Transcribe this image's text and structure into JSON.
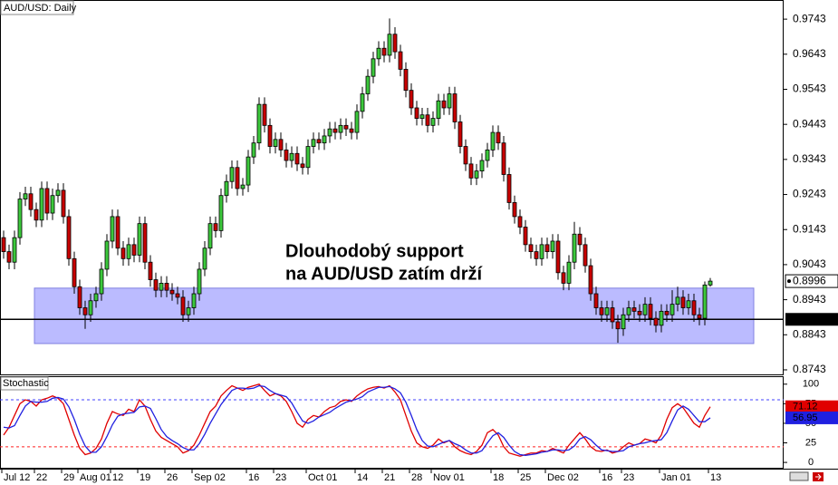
{
  "chart_data": [
    {
      "type": "candlestick",
      "title": "AUD/USD: Daily",
      "categories": [
        "Jul 12",
        null,
        null,
        null,
        null,
        null,
        "22",
        null,
        null,
        null,
        null,
        "29",
        null,
        null,
        "Aug 01",
        null,
        null,
        null,
        null,
        null,
        "12",
        null,
        null,
        null,
        null,
        "19",
        null,
        null,
        null,
        null,
        "26",
        null,
        null,
        null,
        null,
        "Sep 02",
        null,
        null,
        null,
        null,
        null,
        null,
        null,
        null,
        null,
        "16",
        null,
        null,
        null,
        null,
        "23",
        null,
        null,
        null,
        null,
        null,
        "Oct 01",
        null,
        null,
        null,
        null,
        null,
        null,
        null,
        null,
        "14",
        null,
        null,
        null,
        null,
        "21",
        null,
        null,
        null,
        null,
        "28",
        null,
        null,
        null,
        "Nov 01",
        null,
        null,
        null,
        null,
        null,
        null,
        null,
        null,
        null,
        null,
        "18",
        null,
        null,
        null,
        null,
        "25",
        null,
        null,
        null,
        null,
        "Dec 02",
        null,
        null,
        null,
        null,
        null,
        null,
        null,
        null,
        null,
        "16",
        null,
        null,
        null,
        "23",
        null,
        null,
        null,
        null,
        null,
        null,
        "Jan 01",
        null,
        null,
        null,
        null,
        null,
        null,
        null,
        null,
        "13"
      ],
      "ohlc": [
        [
          0.912,
          0.914,
          0.906,
          0.908
        ],
        [
          0.908,
          0.91,
          0.903,
          0.905
        ],
        [
          0.905,
          0.914,
          0.903,
          0.912
        ],
        [
          0.912,
          0.925,
          0.91,
          0.923
        ],
        [
          0.923,
          0.9265,
          0.921,
          0.9245
        ],
        [
          0.9245,
          0.9265,
          0.918,
          0.92
        ],
        [
          0.92,
          0.922,
          0.915,
          0.917
        ],
        [
          0.917,
          0.928,
          0.915,
          0.926
        ],
        [
          0.926,
          0.928,
          0.917,
          0.919
        ],
        [
          0.919,
          0.926,
          0.917,
          0.924
        ],
        [
          0.924,
          0.9275,
          0.922,
          0.9255
        ],
        [
          0.9255,
          0.9275,
          0.916,
          0.918
        ],
        [
          0.918,
          0.92,
          0.904,
          0.906
        ],
        [
          0.906,
          0.908,
          0.896,
          0.898
        ],
        [
          0.898,
          0.9,
          0.89,
          0.892
        ],
        [
          0.892,
          0.894,
          0.886,
          0.89
        ],
        [
          0.89,
          0.896,
          0.888,
          0.894
        ],
        [
          0.894,
          0.898,
          0.892,
          0.896
        ],
        [
          0.896,
          0.905,
          0.894,
          0.903
        ],
        [
          0.903,
          0.913,
          0.901,
          0.911
        ],
        [
          0.911,
          0.92,
          0.909,
          0.918
        ],
        [
          0.918,
          0.92,
          0.907,
          0.909
        ],
        [
          0.909,
          0.911,
          0.904,
          0.906
        ],
        [
          0.906,
          0.912,
          0.904,
          0.91
        ],
        [
          0.91,
          0.912,
          0.905,
          0.907
        ],
        [
          0.907,
          0.918,
          0.905,
          0.916
        ],
        [
          0.916,
          0.918,
          0.903,
          0.905
        ],
        [
          0.905,
          0.907,
          0.898,
          0.9
        ],
        [
          0.9,
          0.902,
          0.895,
          0.897
        ],
        [
          0.897,
          0.901,
          0.895,
          0.899
        ],
        [
          0.899,
          0.901,
          0.895,
          0.897
        ],
        [
          0.897,
          0.899,
          0.894,
          0.896
        ],
        [
          0.896,
          0.898,
          0.893,
          0.895
        ],
        [
          0.895,
          0.897,
          0.888,
          0.89
        ],
        [
          0.89,
          0.894,
          0.888,
          0.892
        ],
        [
          0.892,
          0.898,
          0.89,
          0.896
        ],
        [
          0.896,
          0.905,
          0.894,
          0.903
        ],
        [
          0.903,
          0.911,
          0.901,
          0.909
        ],
        [
          0.909,
          0.918,
          0.907,
          0.916
        ],
        [
          0.916,
          0.918,
          0.912,
          0.914
        ],
        [
          0.914,
          0.926,
          0.912,
          0.924
        ],
        [
          0.924,
          0.93,
          0.922,
          0.928
        ],
        [
          0.928,
          0.934,
          0.926,
          0.932
        ],
        [
          0.932,
          0.934,
          0.924,
          0.926
        ],
        [
          0.926,
          0.929,
          0.924,
          0.927
        ],
        [
          0.927,
          0.937,
          0.925,
          0.935
        ],
        [
          0.935,
          0.941,
          0.933,
          0.939
        ],
        [
          0.939,
          0.952,
          0.937,
          0.95
        ],
        [
          0.95,
          0.952,
          0.942,
          0.944
        ],
        [
          0.944,
          0.946,
          0.936,
          0.938
        ],
        [
          0.938,
          0.942,
          0.936,
          0.94
        ],
        [
          0.94,
          0.942,
          0.935,
          0.937
        ],
        [
          0.937,
          0.939,
          0.932,
          0.934
        ],
        [
          0.934,
          0.938,
          0.932,
          0.936
        ],
        [
          0.936,
          0.938,
          0.931,
          0.933
        ],
        [
          0.933,
          0.935,
          0.93,
          0.932
        ],
        [
          0.932,
          0.94,
          0.93,
          0.938
        ],
        [
          0.938,
          0.942,
          0.936,
          0.94
        ],
        [
          0.94,
          0.942,
          0.937,
          0.939
        ],
        [
          0.939,
          0.943,
          0.937,
          0.941
        ],
        [
          0.941,
          0.945,
          0.939,
          0.943
        ],
        [
          0.943,
          0.945,
          0.94,
          0.942
        ],
        [
          0.942,
          0.946,
          0.94,
          0.944
        ],
        [
          0.944,
          0.946,
          0.941,
          0.943
        ],
        [
          0.943,
          0.945,
          0.94,
          0.942
        ],
        [
          0.942,
          0.95,
          0.94,
          0.948
        ],
        [
          0.948,
          0.955,
          0.946,
          0.953
        ],
        [
          0.953,
          0.96,
          0.951,
          0.958
        ],
        [
          0.958,
          0.965,
          0.956,
          0.963
        ],
        [
          0.963,
          0.968,
          0.961,
          0.966
        ],
        [
          0.966,
          0.968,
          0.962,
          0.964
        ],
        [
          0.964,
          0.9745,
          0.962,
          0.97
        ],
        [
          0.97,
          0.972,
          0.963,
          0.965
        ],
        [
          0.965,
          0.967,
          0.958,
          0.96
        ],
        [
          0.96,
          0.962,
          0.952,
          0.954
        ],
        [
          0.954,
          0.956,
          0.947,
          0.949
        ],
        [
          0.949,
          0.951,
          0.944,
          0.946
        ],
        [
          0.946,
          0.949,
          0.944,
          0.947
        ],
        [
          0.947,
          0.949,
          0.942,
          0.944
        ],
        [
          0.944,
          0.948,
          0.942,
          0.946
        ],
        [
          0.946,
          0.953,
          0.944,
          0.951
        ],
        [
          0.951,
          0.953,
          0.947,
          0.949
        ],
        [
          0.949,
          0.955,
          0.947,
          0.953
        ],
        [
          0.953,
          0.955,
          0.943,
          0.945
        ],
        [
          0.945,
          0.947,
          0.936,
          0.938
        ],
        [
          0.938,
          0.94,
          0.931,
          0.933
        ],
        [
          0.933,
          0.935,
          0.927,
          0.929
        ],
        [
          0.929,
          0.933,
          0.927,
          0.931
        ],
        [
          0.931,
          0.936,
          0.929,
          0.934
        ],
        [
          0.934,
          0.939,
          0.932,
          0.937
        ],
        [
          0.937,
          0.944,
          0.935,
          0.942
        ],
        [
          0.942,
          0.944,
          0.937,
          0.939
        ],
        [
          0.939,
          0.941,
          0.928,
          0.93
        ],
        [
          0.93,
          0.932,
          0.92,
          0.922
        ],
        [
          0.922,
          0.924,
          0.916,
          0.918
        ],
        [
          0.918,
          0.92,
          0.913,
          0.915
        ],
        [
          0.915,
          0.917,
          0.908,
          0.91
        ],
        [
          0.91,
          0.912,
          0.906,
          0.908
        ],
        [
          0.908,
          0.91,
          0.904,
          0.906
        ],
        [
          0.906,
          0.912,
          0.904,
          0.91
        ],
        [
          0.91,
          0.912,
          0.906,
          0.908
        ],
        [
          0.908,
          0.913,
          0.906,
          0.911
        ],
        [
          0.911,
          0.913,
          0.9,
          0.902
        ],
        [
          0.902,
          0.904,
          0.897,
          0.899
        ],
        [
          0.899,
          0.907,
          0.897,
          0.905
        ],
        [
          0.905,
          0.9165,
          0.903,
          0.913
        ],
        [
          0.913,
          0.915,
          0.908,
          0.91
        ],
        [
          0.91,
          0.912,
          0.902,
          0.904
        ],
        [
          0.904,
          0.906,
          0.894,
          0.896
        ],
        [
          0.896,
          0.898,
          0.89,
          0.892
        ],
        [
          0.892,
          0.894,
          0.888,
          0.89
        ],
        [
          0.89,
          0.894,
          0.888,
          0.892
        ],
        [
          0.892,
          0.894,
          0.886,
          0.888
        ],
        [
          0.888,
          0.89,
          0.882,
          0.886
        ],
        [
          0.886,
          0.892,
          0.884,
          0.89
        ],
        [
          0.89,
          0.894,
          0.888,
          0.892
        ],
        [
          0.892,
          0.894,
          0.889,
          0.891
        ],
        [
          0.891,
          0.893,
          0.888,
          0.89
        ],
        [
          0.89,
          0.895,
          0.888,
          0.893
        ],
        [
          0.893,
          0.895,
          0.887,
          0.889
        ],
        [
          0.889,
          0.891,
          0.885,
          0.887
        ],
        [
          0.887,
          0.893,
          0.885,
          0.891
        ],
        [
          0.891,
          0.893,
          0.888,
          0.89
        ],
        [
          0.89,
          0.897,
          0.888,
          0.893
        ],
        [
          0.893,
          0.898,
          0.891,
          0.895
        ],
        [
          0.895,
          0.897,
          0.89,
          0.892
        ],
        [
          0.892,
          0.896,
          0.89,
          0.894
        ],
        [
          0.894,
          0.896,
          0.888,
          0.89
        ],
        [
          0.89,
          0.892,
          0.887,
          0.889
        ],
        [
          0.889,
          0.8995,
          0.887,
          0.8985
        ],
        [
          0.8985,
          0.9005,
          0.898,
          0.8996
        ]
      ],
      "up_color": "#3cc83c",
      "down_color": "#c80000",
      "ylim": [
        0.873,
        0.9795
      ],
      "yticks": [
        0.8743,
        0.8843,
        0.8943,
        0.9043,
        0.9143,
        0.9243,
        0.9343,
        0.9443,
        0.9543,
        0.9643,
        0.9743
      ],
      "support_zone": [
        0.8818,
        0.8976
      ],
      "zone_color": "#b4b4ff",
      "support_level": 0.8887,
      "annotation": [
        "Dlouhodobý support",
        "na AUD/USD zatím drží"
      ]
    },
    {
      "type": "line",
      "title": "Stochastic",
      "ylim": [
        -8,
        109
      ],
      "yticks": [
        0,
        25,
        50,
        75,
        100
      ],
      "levels": [
        {
          "value": 80,
          "color": "#4040ff"
        },
        {
          "value": 20,
          "color": "#ff2020"
        }
      ],
      "series": [
        {
          "color": "#e00000",
          "values": [
            35,
            45,
            60,
            75,
            80,
            78,
            72,
            80,
            82,
            85,
            82,
            75,
            55,
            35,
            18,
            10,
            12,
            18,
            30,
            50,
            65,
            62,
            60,
            68,
            65,
            80,
            72,
            55,
            40,
            32,
            28,
            24,
            20,
            12,
            15,
            22,
            35,
            50,
            65,
            72,
            85,
            92,
            98,
            95,
            92,
            96,
            98,
            100,
            92,
            85,
            88,
            85,
            78,
            65,
            50,
            45,
            55,
            60,
            58,
            65,
            70,
            72,
            78,
            80,
            78,
            85,
            90,
            94,
            96,
            97,
            95,
            98,
            90,
            80,
            60,
            40,
            25,
            20,
            18,
            22,
            30,
            25,
            28,
            20,
            15,
            12,
            10,
            14,
            22,
            38,
            42,
            35,
            20,
            12,
            10,
            8,
            10,
            12,
            12,
            15,
            14,
            18,
            15,
            12,
            22,
            30,
            38,
            30,
            20,
            15,
            14,
            16,
            12,
            14,
            20,
            25,
            22,
            24,
            30,
            28,
            25,
            35,
            55,
            70,
            75,
            70,
            60,
            50,
            45,
            60,
            71.12
          ]
        },
        {
          "color": "#2020e0",
          "values": [
            45,
            44,
            47,
            60,
            72,
            78,
            77,
            77,
            78,
            82,
            83,
            81,
            71,
            55,
            36,
            21,
            13,
            13,
            20,
            33,
            48,
            59,
            62,
            63,
            64,
            71,
            72,
            69,
            56,
            42,
            33,
            28,
            24,
            19,
            16,
            16,
            24,
            36,
            50,
            62,
            74,
            83,
            92,
            95,
            95,
            94,
            95,
            98,
            97,
            92,
            88,
            86,
            84,
            76,
            64,
            53,
            50,
            53,
            58,
            61,
            64,
            69,
            73,
            77,
            79,
            81,
            84,
            90,
            93,
            96,
            96,
            97,
            94,
            89,
            77,
            60,
            42,
            28,
            21,
            20,
            23,
            26,
            28,
            24,
            21,
            16,
            12,
            12,
            15,
            25,
            34,
            38,
            32,
            22,
            14,
            10,
            9,
            10,
            11,
            13,
            14,
            16,
            16,
            15,
            16,
            21,
            30,
            33,
            29,
            22,
            16,
            15,
            14,
            14,
            15,
            20,
            22,
            24,
            25,
            27,
            28,
            29,
            38,
            53,
            67,
            72,
            68,
            60,
            52,
            52,
            56.95
          ]
        }
      ]
    }
  ]
}
